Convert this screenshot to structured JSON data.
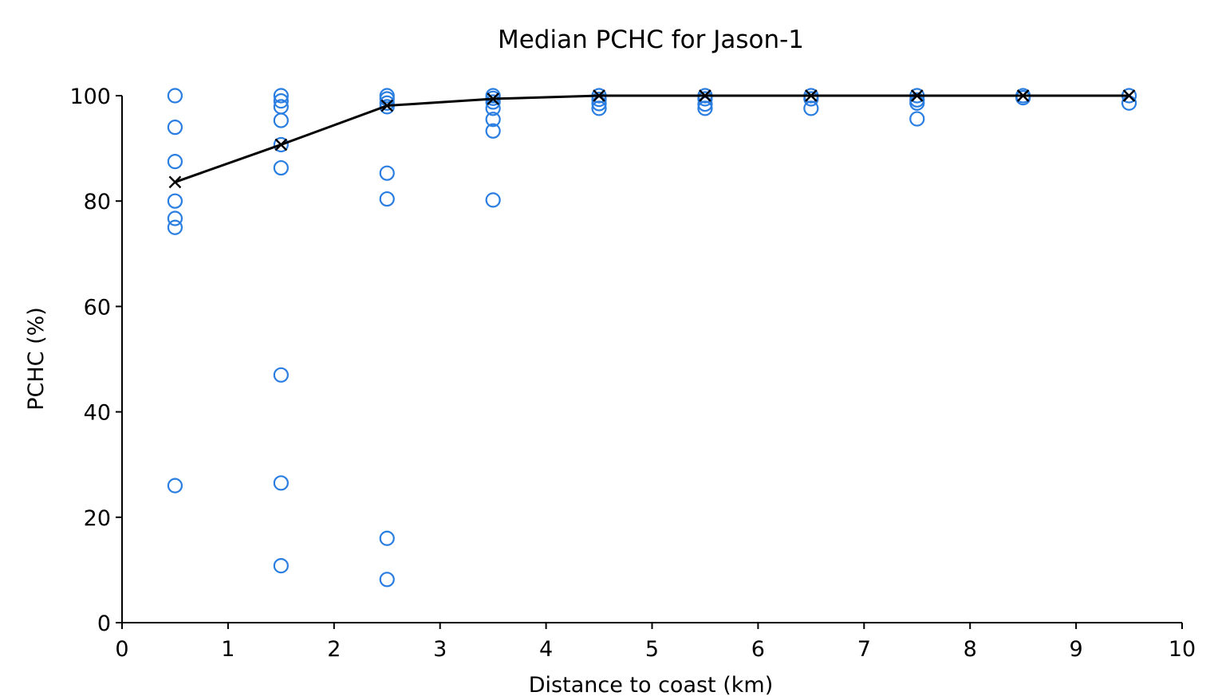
{
  "chart_data": {
    "type": "scatter",
    "title": "Median PCHC for Jason-1",
    "xlabel": "Distance to coast (km)",
    "ylabel": "PCHC (%)",
    "xlim": [
      0,
      10
    ],
    "ylim": [
      0,
      100
    ],
    "xticks": [
      0,
      1,
      2,
      3,
      4,
      5,
      6,
      7,
      8,
      9,
      10
    ],
    "yticks": [
      0,
      20,
      40,
      60,
      80,
      100
    ],
    "grid": false,
    "legend": "none",
    "colors": {
      "scatter": "#2a7de1",
      "median": "#000000"
    },
    "series": [
      {
        "marker": "open-circle",
        "points": [
          [
            0.5,
            100
          ],
          [
            0.5,
            94
          ],
          [
            0.5,
            87.5
          ],
          [
            0.5,
            80
          ],
          [
            0.5,
            76.7
          ],
          [
            0.5,
            75
          ],
          [
            0.5,
            26
          ],
          [
            1.5,
            100
          ],
          [
            1.5,
            99
          ],
          [
            1.5,
            97.9
          ],
          [
            1.5,
            95.3
          ],
          [
            1.5,
            90.7
          ],
          [
            1.5,
            86.3
          ],
          [
            1.5,
            47
          ],
          [
            1.5,
            26.5
          ],
          [
            1.5,
            10.8
          ],
          [
            2.5,
            100
          ],
          [
            2.5,
            99.4
          ],
          [
            2.5,
            98.6
          ],
          [
            2.5,
            97.9
          ],
          [
            2.5,
            85.3
          ],
          [
            2.5,
            80.4
          ],
          [
            2.5,
            16
          ],
          [
            2.5,
            8.2
          ],
          [
            3.5,
            100
          ],
          [
            3.5,
            99.5
          ],
          [
            3.5,
            98.8
          ],
          [
            3.5,
            97.6
          ],
          [
            3.5,
            95.5
          ],
          [
            3.5,
            93.3
          ],
          [
            3.5,
            80.2
          ],
          [
            4.5,
            100
          ],
          [
            4.5,
            99.3
          ],
          [
            4.5,
            98.5
          ],
          [
            4.5,
            97.6
          ],
          [
            5.5,
            100
          ],
          [
            5.5,
            99.4
          ],
          [
            5.5,
            98.4
          ],
          [
            5.5,
            97.6
          ],
          [
            6.5,
            100
          ],
          [
            6.5,
            99.4
          ],
          [
            6.5,
            97.6
          ],
          [
            7.5,
            100
          ],
          [
            7.5,
            99.2
          ],
          [
            7.5,
            98.6
          ],
          [
            7.5,
            95.6
          ],
          [
            8.5,
            100
          ],
          [
            8.5,
            99.6
          ],
          [
            9.5,
            100
          ],
          [
            9.5,
            98.6
          ]
        ]
      },
      {
        "marker": "x",
        "line": "solid",
        "x": [
          0.5,
          1.5,
          2.5,
          3.5,
          4.5,
          5.5,
          6.5,
          7.5,
          8.5,
          9.5
        ],
        "y": [
          83.6,
          90.7,
          98.1,
          99.4,
          100,
          100,
          100,
          100,
          100,
          100
        ]
      }
    ]
  }
}
